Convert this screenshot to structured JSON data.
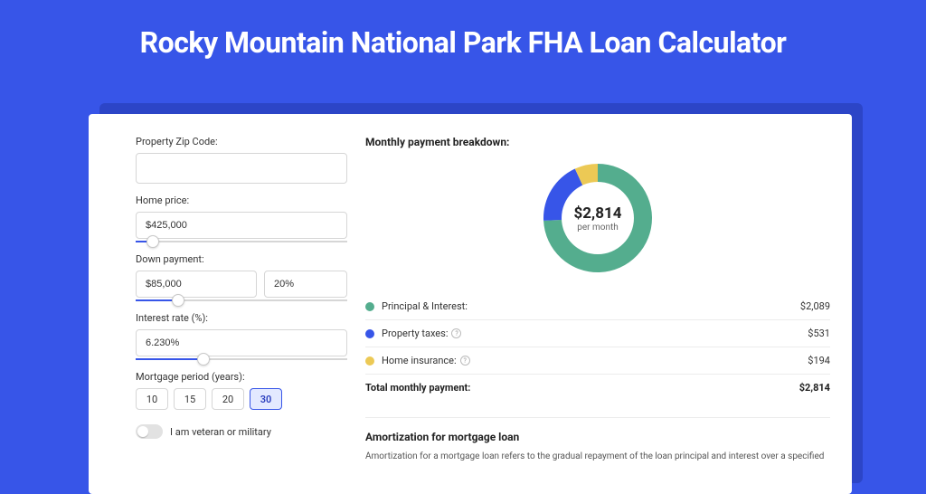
{
  "colors": {
    "page_bg": "#3755e8",
    "shadow_bg": "#2c45c7",
    "card_bg": "#ffffff",
    "title_color": "#ffffff",
    "input_border": "#d6d6d6",
    "slider_track": "#d6d6d6",
    "slider_fill": "#3755e8",
    "divider": "#ececec"
  },
  "page_title": "Rocky Mountain National Park FHA Loan Calculator",
  "form": {
    "zip": {
      "label": "Property Zip Code:",
      "value": ""
    },
    "home_price": {
      "label": "Home price:",
      "value": "$425,000",
      "slider_pct": 8
    },
    "down_payment": {
      "label": "Down payment:",
      "amount": "$85,000",
      "pct": "20%",
      "slider_pct": 20
    },
    "interest_rate": {
      "label": "Interest rate (%):",
      "value": "6.230%",
      "slider_pct": 32
    },
    "mortgage_period": {
      "label": "Mortgage period (years):",
      "options": [
        "10",
        "15",
        "20",
        "30"
      ],
      "selected_index": 3
    },
    "veteran_toggle": {
      "label": "I am veteran or military",
      "value": false
    }
  },
  "breakdown": {
    "title": "Monthly payment breakdown:",
    "donut": {
      "amount": "$2,814",
      "sub": "per month",
      "slices": [
        {
          "label": "Principal & Interest",
          "value": 2089,
          "color": "#54ad8e",
          "start_pct": 0
        },
        {
          "label": "Property taxes",
          "value": 531,
          "color": "#3755e8",
          "start_pct": 74.2
        },
        {
          "label": "Home insurance",
          "value": 194,
          "color": "#ecc955",
          "start_pct": 93.1
        }
      ],
      "total": 2814
    },
    "rows": [
      {
        "dot_color": "#54ad8e",
        "label": "Principal & Interest:",
        "info": false,
        "value": "$2,089"
      },
      {
        "dot_color": "#3755e8",
        "label": "Property taxes:",
        "info": true,
        "value": "$531"
      },
      {
        "dot_color": "#ecc955",
        "label": "Home insurance:",
        "info": true,
        "value": "$194"
      }
    ],
    "total_row": {
      "label": "Total monthly payment:",
      "value": "$2,814"
    }
  },
  "amortization": {
    "title": "Amortization for mortgage loan",
    "text": "Amortization for a mortgage loan refers to the gradual repayment of the loan principal and interest over a specified"
  }
}
